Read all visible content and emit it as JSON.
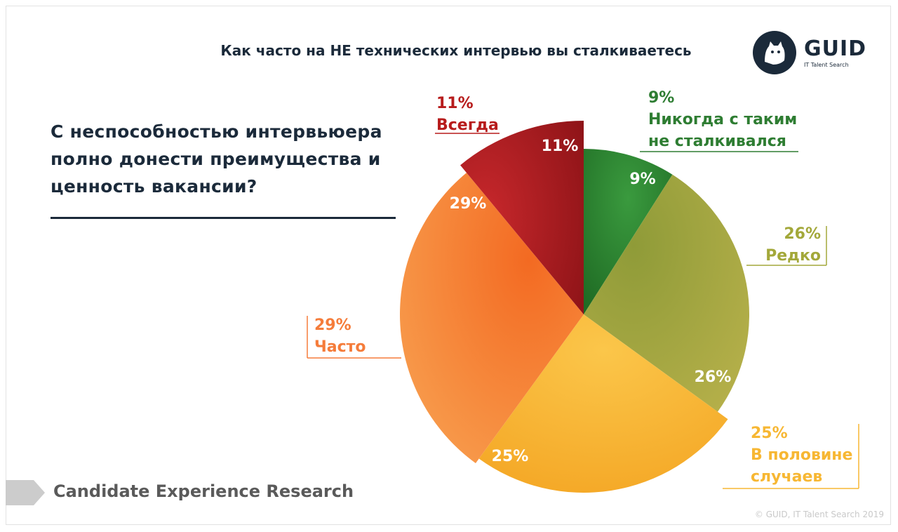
{
  "header": {
    "title": "Как часто на НЕ технических интервью вы сталкиваетесь",
    "question": "С неспособностью интервьюера полно донести преимущества и ценность вакансии?"
  },
  "logo": {
    "name": "GUID",
    "tagline": "IT Talent Search"
  },
  "footer": {
    "label": "Candidate Experience Research",
    "copyright": "© GUID, IT Talent Search 2019"
  },
  "colors": {
    "never": "#2e7d32",
    "rarely": "#a3a83a",
    "half": "#f7b733",
    "often": "#f57c3a",
    "always": "#b71c1c"
  },
  "chart_data": {
    "type": "pie",
    "title": "Как часто на НЕ технических интервью вы сталкиваетесь",
    "slices": [
      {
        "key": "never",
        "label": "Никогда с таким не сталкивался",
        "label_lines": [
          "9%",
          "Никогда с таким",
          "не сталкивался"
        ],
        "value": 9,
        "pct_text": "9%"
      },
      {
        "key": "rarely",
        "label": "Редко",
        "label_lines": [
          "26%",
          "Редко"
        ],
        "value": 26,
        "pct_text": "26%"
      },
      {
        "key": "half",
        "label": "В половине случаев",
        "label_lines": [
          "25%",
          "В половине",
          "случаев"
        ],
        "value": 25,
        "pct_text": "25%"
      },
      {
        "key": "often",
        "label": "Часто",
        "label_lines": [
          "29%",
          "Часто"
        ],
        "value": 29,
        "pct_text": "29%"
      },
      {
        "key": "always",
        "label": "Всегда",
        "label_lines": [
          "11%",
          "Всегда"
        ],
        "value": 11,
        "pct_text": "11%"
      }
    ]
  }
}
